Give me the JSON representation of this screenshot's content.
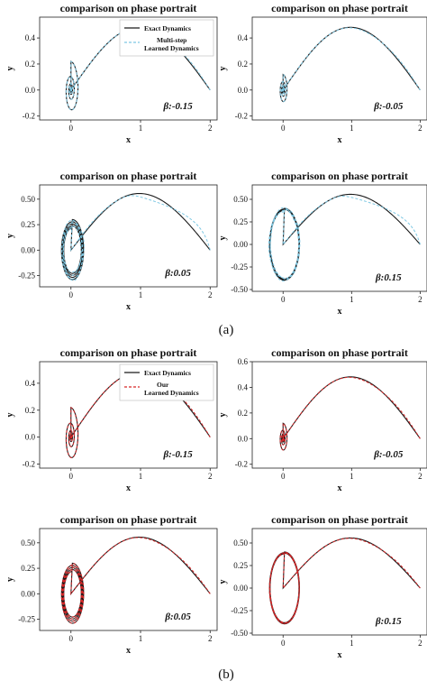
{
  "figure": {
    "label_a": "(a)",
    "label_b": "(b)"
  },
  "chart_data": [
    {
      "id": "a1",
      "type": "line",
      "group": "a",
      "title": "comparison on phase portrait",
      "xlabel": "x",
      "ylabel": "y",
      "annotation": "β:-0.15",
      "xlim": [
        -0.45,
        2.1
      ],
      "ylim": [
        -0.23,
        0.56
      ],
      "xticks": [
        0,
        1,
        2
      ],
      "yticks": [
        -0.2,
        0.0,
        0.2,
        0.4
      ],
      "ytick_decimals": 1,
      "legend": {
        "placement": "top-right",
        "entries": [
          "Exact Dynamics",
          "Multi-step\nLearned Dynamics"
        ]
      },
      "series": [
        {
          "name": "Exact Dynamics",
          "color": "#1a1a1a",
          "style": "solid"
        },
        {
          "name": "Multi-step Learned Dynamics",
          "color": "#7ec8e3",
          "style": "dashed"
        }
      ],
      "trajectory": {
        "beta": -0.15,
        "start": [
          2.0,
          0.0
        ],
        "end": [
          0.0,
          0.0
        ]
      }
    },
    {
      "id": "a2",
      "type": "line",
      "group": "a",
      "title": "comparison on phase portrait",
      "xlabel": "x",
      "ylabel": "y",
      "annotation": "β:-0.05",
      "xlim": [
        -0.45,
        2.1
      ],
      "ylim": [
        -0.23,
        0.56
      ],
      "xticks": [
        0,
        1,
        2
      ],
      "yticks": [
        -0.2,
        0.0,
        0.2,
        0.4
      ],
      "ytick_decimals": 1,
      "series": [
        {
          "name": "Exact Dynamics",
          "color": "#1a1a1a",
          "style": "solid"
        },
        {
          "name": "Multi-step Learned Dynamics",
          "color": "#7ec8e3",
          "style": "dashed"
        }
      ],
      "trajectory": {
        "beta": -0.05,
        "start": [
          2.0,
          0.0
        ],
        "end": [
          0.0,
          0.0
        ]
      }
    },
    {
      "id": "a3",
      "type": "line",
      "group": "a",
      "title": "comparison on phase portrait",
      "xlabel": "x",
      "ylabel": "y",
      "annotation": "β:0.05",
      "xlim": [
        -0.45,
        2.1
      ],
      "ylim": [
        -0.36,
        0.64
      ],
      "xticks": [
        0,
        1,
        2
      ],
      "yticks": [
        -0.25,
        0.0,
        0.25,
        0.5
      ],
      "ytick_decimals": 2,
      "series": [
        {
          "name": "Exact Dynamics",
          "color": "#1a1a1a",
          "style": "solid"
        },
        {
          "name": "Multi-step Learned Dynamics",
          "color": "#7ec8e3",
          "style": "dashed"
        }
      ],
      "trajectory": {
        "beta": 0.05,
        "start": [
          2.0,
          0.0
        ]
      }
    },
    {
      "id": "a4",
      "type": "line",
      "group": "a",
      "title": "comparison on phase portrait",
      "xlabel": "x",
      "ylabel": "y",
      "annotation": "β:0.15",
      "xlim": [
        -0.45,
        2.1
      ],
      "ylim": [
        -0.52,
        0.66
      ],
      "xticks": [
        0,
        1,
        2
      ],
      "yticks": [
        -0.5,
        -0.25,
        0.0,
        0.25,
        0.5
      ],
      "ytick_decimals": 2,
      "series": [
        {
          "name": "Exact Dynamics",
          "color": "#1a1a1a",
          "style": "solid"
        },
        {
          "name": "Multi-step Learned Dynamics",
          "color": "#7ec8e3",
          "style": "dashed"
        }
      ],
      "trajectory": {
        "beta": 0.15,
        "start": [
          2.0,
          0.0
        ]
      }
    },
    {
      "id": "b1",
      "type": "line",
      "group": "b",
      "title": "comparison on phase portrait",
      "xlabel": "x",
      "ylabel": "y",
      "annotation": "β:-0.15",
      "xlim": [
        -0.45,
        2.1
      ],
      "ylim": [
        -0.23,
        0.56
      ],
      "xticks": [
        0,
        1,
        2
      ],
      "yticks": [
        -0.2,
        0.0,
        0.2,
        0.4
      ],
      "ytick_decimals": 1,
      "legend": {
        "placement": "top-right",
        "entries": [
          "Exact Dynamics",
          "Our\nLearned Dynamics"
        ]
      },
      "series": [
        {
          "name": "Exact Dynamics",
          "color": "#1a1a1a",
          "style": "solid"
        },
        {
          "name": "Our Learned Dynamics",
          "color": "#d62728",
          "style": "dashed"
        }
      ],
      "trajectory": {
        "beta": -0.15,
        "start": [
          2.0,
          0.0
        ],
        "end": [
          0.0,
          0.0
        ]
      }
    },
    {
      "id": "b2",
      "type": "line",
      "group": "b",
      "title": "comparison on phase portrait",
      "xlabel": "x",
      "ylabel": "y",
      "annotation": "β:-0.05",
      "xlim": [
        -0.45,
        2.1
      ],
      "ylim": [
        -0.23,
        0.6
      ],
      "xticks": [
        0,
        1,
        2
      ],
      "yticks": [
        -0.2,
        0.0,
        0.2,
        0.4,
        0.6
      ],
      "ytick_decimals": 1,
      "series": [
        {
          "name": "Exact Dynamics",
          "color": "#1a1a1a",
          "style": "solid"
        },
        {
          "name": "Our Learned Dynamics",
          "color": "#d62728",
          "style": "dashed"
        }
      ],
      "trajectory": {
        "beta": -0.05,
        "start": [
          2.0,
          0.0
        ],
        "end": [
          0.0,
          0.0
        ]
      }
    },
    {
      "id": "b3",
      "type": "line",
      "group": "b",
      "title": "comparison on phase portrait",
      "xlabel": "x",
      "ylabel": "y",
      "annotation": "β:0.05",
      "xlim": [
        -0.45,
        2.1
      ],
      "ylim": [
        -0.36,
        0.64
      ],
      "xticks": [
        0,
        1,
        2
      ],
      "yticks": [
        -0.25,
        0.0,
        0.25,
        0.5
      ],
      "ytick_decimals": 2,
      "series": [
        {
          "name": "Exact Dynamics",
          "color": "#1a1a1a",
          "style": "solid"
        },
        {
          "name": "Our Learned Dynamics",
          "color": "#d62728",
          "style": "dashed"
        }
      ],
      "trajectory": {
        "beta": 0.05,
        "start": [
          2.0,
          0.0
        ]
      }
    },
    {
      "id": "b4",
      "type": "line",
      "group": "b",
      "title": "comparison on phase portrait",
      "xlabel": "x",
      "ylabel": "y",
      "annotation": "β:0.15",
      "xlim": [
        -0.45,
        2.1
      ],
      "ylim": [
        -0.52,
        0.66
      ],
      "xticks": [
        0,
        1,
        2
      ],
      "yticks": [
        -0.5,
        -0.25,
        0.0,
        0.25,
        0.5
      ],
      "ytick_decimals": 2,
      "series": [
        {
          "name": "Exact Dynamics",
          "color": "#1a1a1a",
          "style": "solid"
        },
        {
          "name": "Our Learned Dynamics",
          "color": "#d62728",
          "style": "dashed"
        }
      ],
      "trajectory": {
        "beta": 0.15,
        "start": [
          2.0,
          0.0
        ]
      }
    }
  ]
}
